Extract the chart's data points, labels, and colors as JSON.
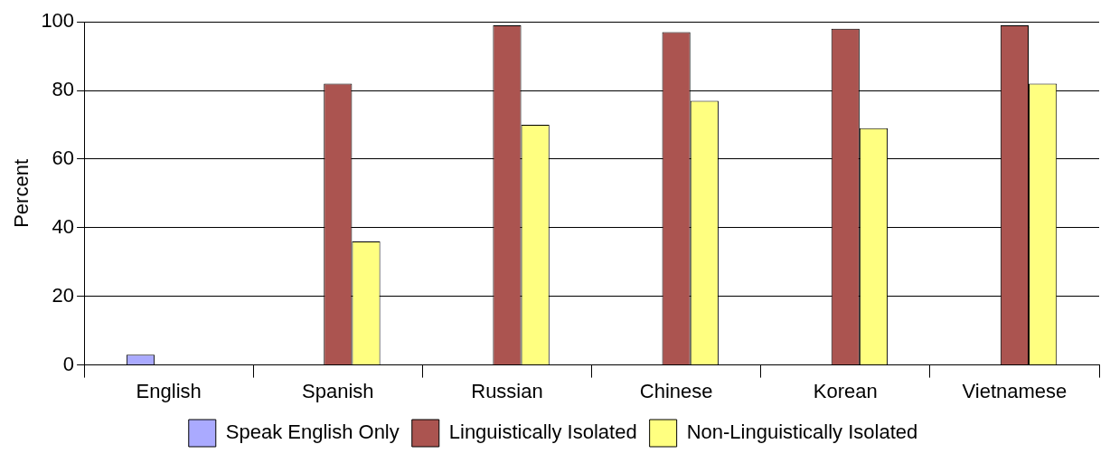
{
  "chart_data": {
    "type": "bar",
    "ylabel": "Percent",
    "categories": [
      "English",
      "Spanish",
      "Russian",
      "Chinese",
      "Korean",
      "Vietnamese"
    ],
    "series": [
      {
        "name": "Speak English Only",
        "color": "#aaaaff",
        "values": [
          3,
          null,
          null,
          null,
          null,
          null
        ]
      },
      {
        "name": "Linguistically Isolated",
        "color": "#ab5450",
        "values": [
          null,
          82,
          99,
          97,
          98,
          99
        ]
      },
      {
        "name": "Non-Linguistically Isolated",
        "color": "#ffff80",
        "values": [
          null,
          36,
          70,
          77,
          69,
          82
        ]
      }
    ],
    "ylim": [
      0,
      100
    ],
    "yticks": [
      0,
      20,
      40,
      60,
      80,
      100
    ],
    "grid": "y",
    "legend": "bottom"
  }
}
